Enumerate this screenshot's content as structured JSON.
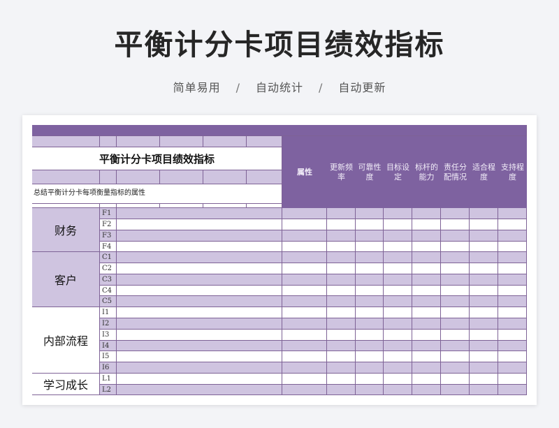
{
  "header": {
    "title": "平衡计分卡项目绩效指标",
    "features": [
      "简单易用",
      "自动统计",
      "自动更新"
    ],
    "separator": "/"
  },
  "sheet": {
    "title": "平衡计分卡项目绩效指标",
    "description": "总结平衡计分卡每项衡量指标的属性",
    "columns": [
      "属性",
      "更新频率",
      "可靠性度",
      "目标设定",
      "标杆的能力",
      "责任分配情况",
      "适合程度",
      "支持程度"
    ],
    "categories": [
      {
        "label": "财务",
        "codes": [
          "F1",
          "F2",
          "F3",
          "F4"
        ]
      },
      {
        "label": "客户",
        "codes": [
          "C1",
          "C2",
          "C3",
          "C4",
          "C5"
        ]
      },
      {
        "label": "内部流程",
        "codes": [
          "I1",
          "I2",
          "I3",
          "I4",
          "I5",
          "I6"
        ]
      },
      {
        "label": "学习成长",
        "codes": [
          "L1",
          "L2"
        ]
      }
    ]
  },
  "colors": {
    "purple": "#7e62a0",
    "lavender": "#cfc4e0",
    "border": "#7e6296"
  }
}
